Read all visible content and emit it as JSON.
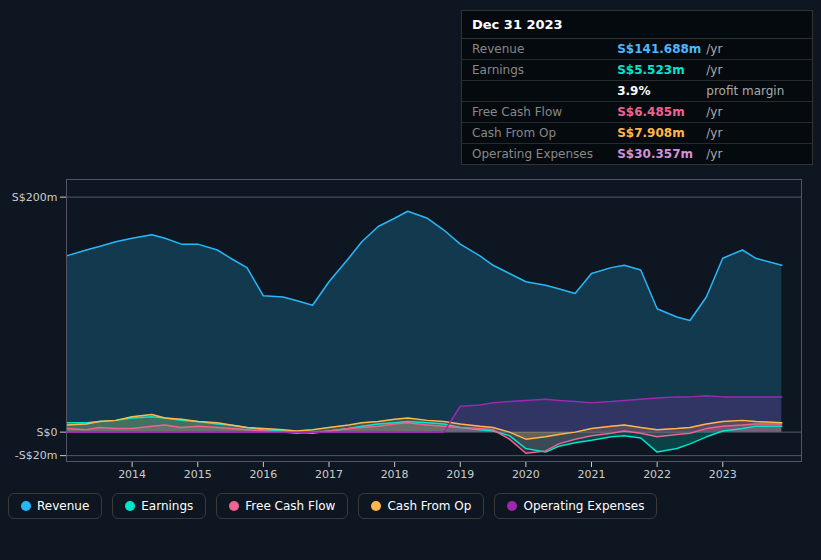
{
  "chart_data": {
    "type": "area",
    "title": "Dec 31 2023",
    "x": [
      2013.0,
      2013.3,
      2013.5,
      2013.75,
      2014.0,
      2014.3,
      2014.5,
      2014.75,
      2015.0,
      2015.3,
      2015.5,
      2015.75,
      2016.0,
      2016.3,
      2016.5,
      2016.75,
      2017.0,
      2017.3,
      2017.5,
      2017.75,
      2018.0,
      2018.2,
      2018.5,
      2018.75,
      2019.0,
      2019.3,
      2019.5,
      2019.75,
      2020.0,
      2020.3,
      2020.5,
      2020.75,
      2021.0,
      2021.3,
      2021.5,
      2021.75,
      2022.0,
      2022.3,
      2022.5,
      2022.75,
      2023.0,
      2023.3,
      2023.5,
      2023.9
    ],
    "series": [
      {
        "name": "Revenue",
        "color": "#29b6f6",
        "values": [
          150,
          155,
          158,
          162,
          165,
          168,
          165,
          160,
          160,
          155,
          148,
          140,
          116,
          115,
          112,
          108,
          128,
          148,
          162,
          175,
          182,
          188,
          182,
          172,
          160,
          150,
          142,
          135,
          128,
          125,
          122,
          118,
          135,
          140,
          142,
          138,
          105,
          98,
          95,
          115,
          148,
          155,
          148,
          142
        ]
      },
      {
        "name": "Earnings",
        "color": "#00e5cc",
        "values": [
          8,
          8,
          9,
          10,
          12,
          13,
          12,
          10,
          9,
          7,
          6,
          4,
          2,
          1,
          0,
          -1,
          1,
          3,
          5,
          7,
          8,
          9,
          8,
          7,
          4,
          2,
          1,
          -3,
          -14,
          -17,
          -12,
          -9,
          -7,
          -4,
          -3,
          -5,
          -17,
          -14,
          -10,
          -4,
          1,
          3,
          5,
          5
        ]
      },
      {
        "name": "Free Cash Flow",
        "color": "#f06292",
        "values": [
          3,
          2,
          4,
          3,
          3,
          5,
          6,
          4,
          5,
          4,
          3,
          2,
          1,
          0,
          -1,
          0,
          1,
          3,
          4,
          5,
          7,
          8,
          6,
          5,
          4,
          3,
          2,
          -6,
          -18,
          -16,
          -10,
          -6,
          -3,
          -1,
          1,
          -1,
          -4,
          -2,
          -1,
          3,
          5,
          6,
          7,
          7
        ]
      },
      {
        "name": "Cash From Op",
        "color": "#ffb74d",
        "values": [
          6,
          7,
          9,
          10,
          13,
          15,
          12,
          11,
          9,
          8,
          6,
          4,
          3,
          2,
          1,
          2,
          4,
          6,
          8,
          9,
          11,
          12,
          10,
          9,
          7,
          5,
          4,
          0,
          -6,
          -4,
          -2,
          0,
          3,
          5,
          6,
          4,
          2,
          3,
          4,
          7,
          9,
          10,
          9,
          8
        ]
      },
      {
        "name": "Operating Expenses",
        "color": "#9c27b0",
        "values": [
          0,
          0,
          0,
          0,
          0,
          0,
          0,
          0,
          0,
          0,
          0,
          0,
          0,
          0,
          0,
          0,
          0,
          0,
          0,
          0,
          0,
          0,
          0,
          0,
          22,
          23,
          25,
          26,
          27,
          28,
          27,
          26,
          25,
          26,
          27,
          28,
          29,
          30,
          30,
          31,
          30,
          30,
          30,
          30
        ]
      }
    ],
    "xlim": [
      2013.0,
      2024.2
    ],
    "xticks": [
      2014,
      2015,
      2016,
      2017,
      2018,
      2019,
      2020,
      2021,
      2022,
      2023
    ],
    "ylim": [
      -25,
      215
    ],
    "yticks": [
      {
        "value": 200,
        "label": "S$200m"
      },
      {
        "value": 0,
        "label": "S$0"
      },
      {
        "value": -20,
        "label": "-S$20m"
      }
    ],
    "grid": true,
    "legend": "bottom",
    "annotations": [
      {
        "label": "Revenue",
        "text": "S$141.688m",
        "suffix": "/yr",
        "color": "#4db8ff"
      },
      {
        "label": "Earnings",
        "text": "S$5.523m",
        "suffix": "/yr",
        "color": "#00e5cc"
      },
      {
        "text": "3.9%",
        "suffix": "profit margin",
        "color": "#ffffff"
      },
      {
        "label": "Free Cash Flow",
        "text": "S$6.485m",
        "suffix": "/yr",
        "color": "#f06292"
      },
      {
        "label": "Cash From Op",
        "text": "S$7.908m",
        "suffix": "/yr",
        "color": "#ffb74d"
      },
      {
        "label": "Operating Expenses",
        "text": "S$30.357m",
        "suffix": "/yr",
        "color": "#ce93d8"
      }
    ]
  }
}
